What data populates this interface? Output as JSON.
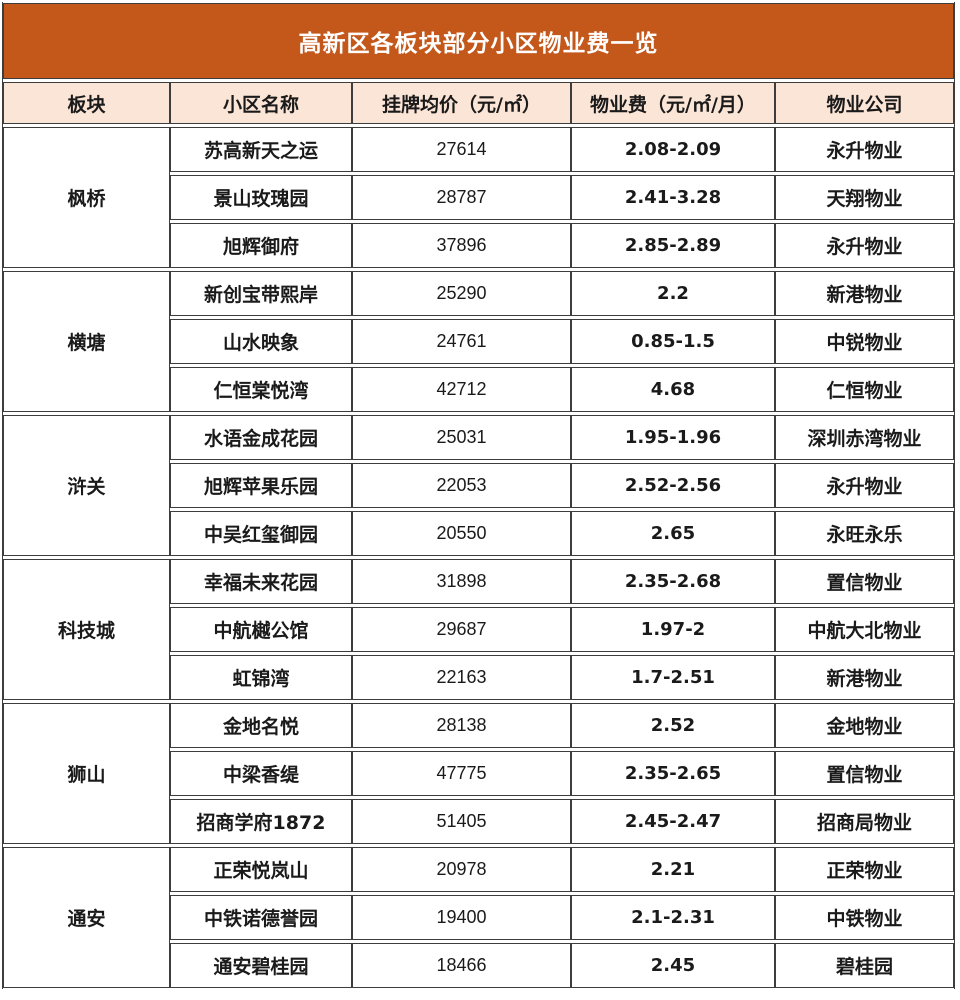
{
  "chart_data": {
    "type": "table",
    "title": "高新区各板块部分小区物业费一览",
    "columns": [
      "板块",
      "小区名称",
      "挂牌均价（元/㎡）",
      "物业费（元/㎡/月）",
      "物业公司"
    ],
    "groups": [
      {
        "district": "枫桥",
        "rows": [
          {
            "community": "苏高新天之运",
            "price": "27614",
            "fee": "2.08-2.09",
            "company": "永升物业"
          },
          {
            "community": "景山玫瑰园",
            "price": "28787",
            "fee": "2.41-3.28",
            "company": "天翔物业"
          },
          {
            "community": "旭辉御府",
            "price": "37896",
            "fee": "2.85-2.89",
            "company": "永升物业"
          }
        ]
      },
      {
        "district": "横塘",
        "rows": [
          {
            "community": "新创宝带熙岸",
            "price": "25290",
            "fee": "2.2",
            "company": "新港物业"
          },
          {
            "community": "山水映象",
            "price": "24761",
            "fee": "0.85-1.5",
            "company": "中锐物业"
          },
          {
            "community": "仁恒棠悦湾",
            "price": "42712",
            "fee": "4.68",
            "company": "仁恒物业"
          }
        ]
      },
      {
        "district": "浒关",
        "rows": [
          {
            "community": "水语金成花园",
            "price": "25031",
            "fee": "1.95-1.96",
            "company": "深圳赤湾物业"
          },
          {
            "community": "旭辉苹果乐园",
            "price": "22053",
            "fee": "2.52-2.56",
            "company": "永升物业"
          },
          {
            "community": "中吴红玺御园",
            "price": "20550",
            "fee": "2.65",
            "company": "永旺永乐"
          }
        ]
      },
      {
        "district": "科技城",
        "rows": [
          {
            "community": "幸福未来花园",
            "price": "31898",
            "fee": "2.35-2.68",
            "company": "置信物业"
          },
          {
            "community": "中航樾公馆",
            "price": "29687",
            "fee": "1.97-2",
            "company": "中航大北物业"
          },
          {
            "community": "虹锦湾",
            "price": "22163",
            "fee": "1.7-2.51",
            "company": "新港物业"
          }
        ]
      },
      {
        "district": "狮山",
        "rows": [
          {
            "community": "金地名悦",
            "price": "28138",
            "fee": "2.52",
            "company": "金地物业"
          },
          {
            "community": "中梁香缇",
            "price": "47775",
            "fee": "2.35-2.65",
            "company": "置信物业"
          },
          {
            "community": "招商学府1872",
            "price": "51405",
            "fee": "2.45-2.47",
            "company": "招商局物业"
          }
        ]
      },
      {
        "district": "通安",
        "rows": [
          {
            "community": "正荣悦岚山",
            "price": "20978",
            "fee": "2.21",
            "company": "正荣物业"
          },
          {
            "community": "中铁诺德誉园",
            "price": "19400",
            "fee": "2.1-2.31",
            "company": "中铁物业"
          },
          {
            "community": "通安碧桂园",
            "price": "18466",
            "fee": "2.45",
            "company": "碧桂园"
          }
        ]
      }
    ]
  },
  "colors": {
    "title_bg": "#C4571A",
    "title_text": "#FFFFFF",
    "header_bg": "#FBE5D6",
    "fee_text": "#FF0000",
    "body_text": "#1A1A1A",
    "border": "#3D3D3D"
  }
}
